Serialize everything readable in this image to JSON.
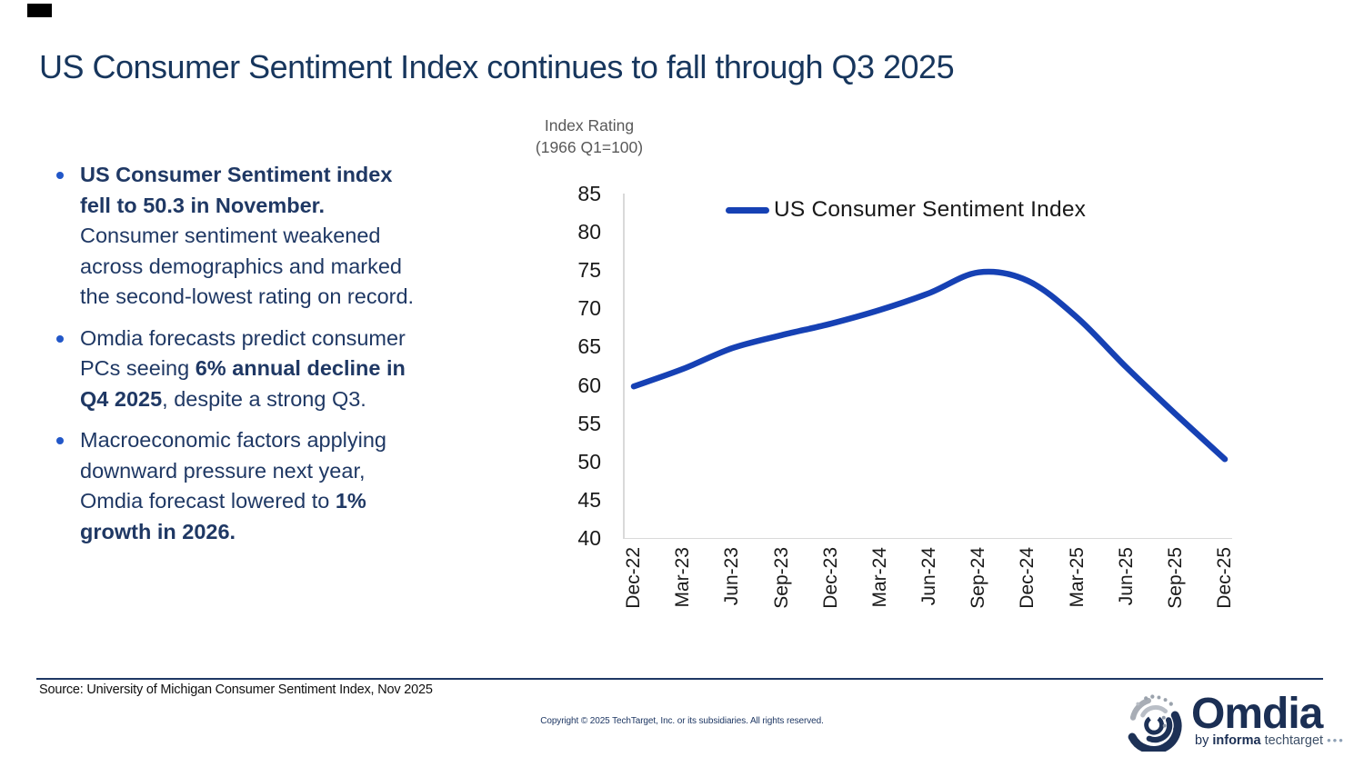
{
  "slide": {
    "title": "US Consumer Sentiment Index continues to fall through Q3 2025",
    "bullets": [
      {
        "segments": [
          {
            "text": "US Consumer Sentiment index fell to 50.3 in November.",
            "bold": true
          },
          {
            "text": " Consumer sentiment weakened across demographics and marked the second-lowest rating on record.",
            "bold": false
          }
        ]
      },
      {
        "segments": [
          {
            "text": "Omdia forecasts predict consumer PCs seeing ",
            "bold": false
          },
          {
            "text": "6% annual decline in Q4 2025",
            "bold": true
          },
          {
            "text": ", despite a strong Q3.",
            "bold": false
          }
        ]
      },
      {
        "segments": [
          {
            "text": "Macroeconomic factors applying downward pressure next year, Omdia forecast lowered to ",
            "bold": false
          },
          {
            "text": "1% growth in 2026.",
            "bold": true
          }
        ]
      }
    ]
  },
  "chart_data": {
    "type": "line",
    "title": "US Consumer Sentiment Index",
    "ylabel": "Index Rating (1966 Q1=100)",
    "xlabel": "",
    "axis_title_lines": [
      "Index Rating",
      "(1966 Q1=100)"
    ],
    "categories": [
      "Dec-22",
      "Mar-23",
      "Jun-23",
      "Sep-23",
      "Dec-23",
      "Mar-24",
      "Jun-24",
      "Sep-24",
      "Dec-24",
      "Mar-25",
      "Jun-25",
      "Sep-25",
      "Dec-25"
    ],
    "series": [
      {
        "name": "US Consumer Sentiment Index",
        "values": [
          59.8,
          62.1,
          64.8,
          66.5,
          68.0,
          69.8,
          72.0,
          74.7,
          73.6,
          68.8,
          62.3,
          56.2,
          50.3
        ]
      }
    ],
    "ylim": [
      40,
      85
    ],
    "ytick_step": 5,
    "grid": false,
    "legend_position": "top-center-inside",
    "line_color": "#1641B4"
  },
  "footer": {
    "source": "Source: University of Michigan Consumer Sentiment Index, Nov 2025",
    "copyright": "Copyright © 2025 TechTarget, Inc. or its subsidiaries. All rights reserved."
  },
  "logo": {
    "wordmark": "Omdia",
    "tagline": {
      "by": "by",
      "informa": "informa",
      "techtarget": "techtarget",
      "dots": "•••"
    }
  },
  "colors": {
    "accent_line": "#1641B4",
    "title_navy": "#17365D",
    "body_navy": "#1F3864",
    "bullet_dot_blue": "#2257C8",
    "axis_gray": "#D9D9D9",
    "axis_title_gray": "#595959",
    "tick_text": "#1A1A1A",
    "footer_rule_navy": "#1F3864",
    "logo_navy": "#1B2F54"
  }
}
